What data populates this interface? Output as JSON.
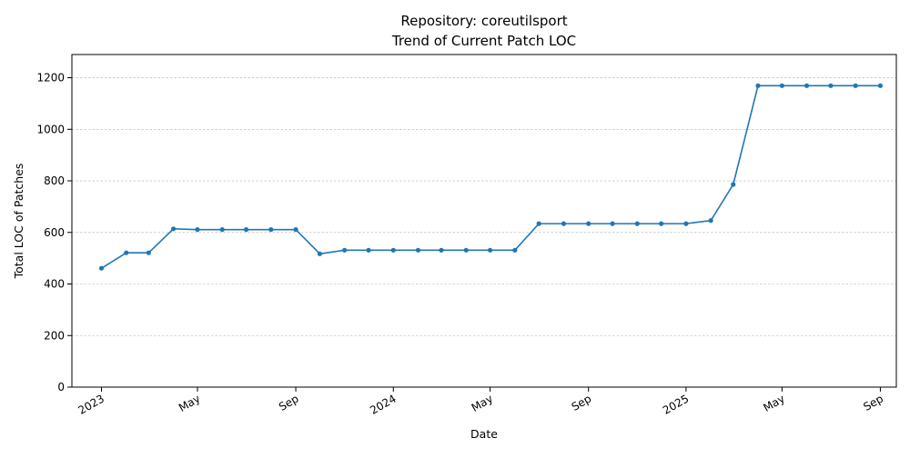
{
  "chart_data": {
    "type": "line",
    "title": "Repository: coreutilsport",
    "subtitle": "Trend of Current Patch LOC",
    "xlabel": "Date",
    "ylabel": "Total LOC of Patches",
    "x_range": [
      "2022-11-25",
      "2025-09-21"
    ],
    "ylim": [
      0,
      1290
    ],
    "grid": {
      "x": false,
      "y": true
    },
    "y_ticks": [
      0,
      200,
      400,
      600,
      800,
      1000,
      1200
    ],
    "x_ticks": [
      {
        "date": "2023-01-01",
        "label": "2023"
      },
      {
        "date": "2023-05-01",
        "label": "May"
      },
      {
        "date": "2023-09-01",
        "label": "Sep"
      },
      {
        "date": "2024-01-01",
        "label": "2024"
      },
      {
        "date": "2024-05-01",
        "label": "May"
      },
      {
        "date": "2024-09-01",
        "label": "Sep"
      },
      {
        "date": "2025-01-01",
        "label": "2025"
      },
      {
        "date": "2025-05-01",
        "label": "May"
      },
      {
        "date": "2025-09-01",
        "label": "Sep"
      }
    ],
    "color": "#1f77b4",
    "series": [
      {
        "x": [
          "2023-01-01",
          "2023-02-01",
          "2023-03-01",
          "2023-04-01",
          "2023-05-01",
          "2023-06-01",
          "2023-07-01",
          "2023-08-01",
          "2023-09-01",
          "2023-10-01",
          "2023-11-01",
          "2023-12-01",
          "2024-01-01",
          "2024-02-01",
          "2024-03-01",
          "2024-04-01",
          "2024-05-01",
          "2024-06-01",
          "2024-07-01",
          "2024-08-01",
          "2024-09-01",
          "2024-10-01",
          "2024-11-01",
          "2024-12-01",
          "2025-01-01",
          "2025-02-01",
          "2025-03-01",
          "2025-04-01",
          "2025-05-01",
          "2025-06-01",
          "2025-07-01",
          "2025-08-01",
          "2025-09-01"
        ],
        "y": [
          461,
          521,
          521,
          614,
          611,
          611,
          611,
          611,
          611,
          517,
          531,
          531,
          531,
          531,
          531,
          531,
          531,
          531,
          634,
          634,
          634,
          634,
          634,
          634,
          634,
          646,
          786,
          1169,
          1169,
          1169,
          1169,
          1169,
          1169
        ]
      }
    ]
  }
}
